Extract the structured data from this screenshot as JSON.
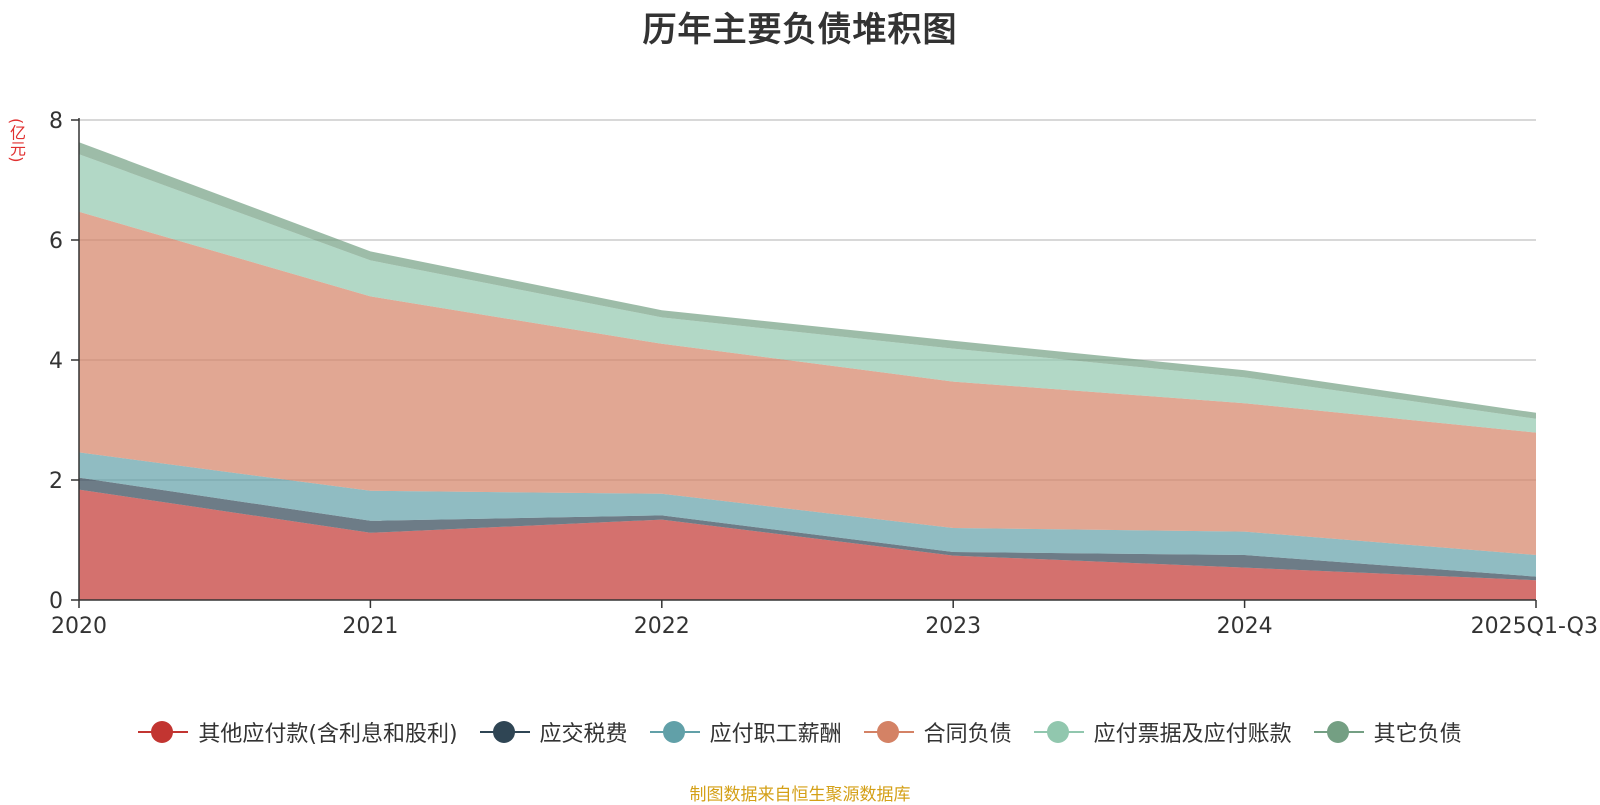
{
  "chart_data": {
    "type": "area",
    "stacked": true,
    "title": "历年主要负债堆积图",
    "ylabel": "(亿元)",
    "xlabel": "",
    "categories": [
      "2020",
      "2021",
      "2022",
      "2023",
      "2024",
      "2025Q1-Q3"
    ],
    "ylim": [
      0,
      8
    ],
    "yticks": [
      0,
      2,
      4,
      6,
      8
    ],
    "grid": true,
    "legend_position": "bottom",
    "series": [
      {
        "name": "其他应付款(含利息和股利)",
        "color": "#c23531",
        "values": [
          1.84,
          1.12,
          1.34,
          0.74,
          0.54,
          0.33
        ]
      },
      {
        "name": "应交税费",
        "color": "#2f4554",
        "values": [
          0.2,
          0.2,
          0.07,
          0.06,
          0.21,
          0.06
        ]
      },
      {
        "name": "应付职工薪酬",
        "color": "#61a0a8",
        "values": [
          0.42,
          0.5,
          0.36,
          0.4,
          0.39,
          0.36
        ]
      },
      {
        "name": "合同负债",
        "color": "#d48265",
        "values": [
          4.01,
          3.24,
          2.5,
          2.44,
          2.14,
          2.04
        ]
      },
      {
        "name": "应付票据及应付账款",
        "color": "#91c7ae",
        "values": [
          0.96,
          0.6,
          0.44,
          0.55,
          0.43,
          0.23
        ]
      },
      {
        "name": "其它负债",
        "color": "#749f83",
        "values": [
          0.2,
          0.15,
          0.12,
          0.13,
          0.12,
          0.1
        ]
      }
    ]
  },
  "source_note": "制图数据来自恒生聚源数据库"
}
